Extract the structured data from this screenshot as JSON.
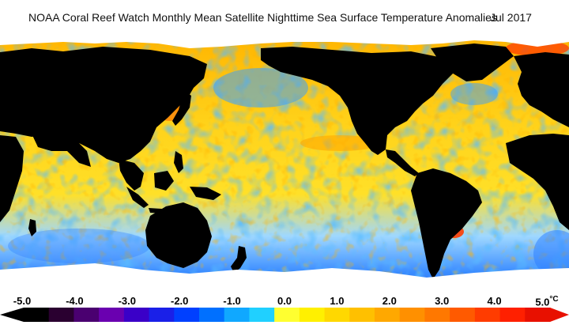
{
  "header": {
    "title": "NOAA Coral Reef Watch Monthly Mean Satellite Nighttime Sea Surface Temperature Anomalies",
    "date": "Jul 2017"
  },
  "legend": {
    "tick_labels": [
      "-5.0",
      "-4.0",
      "-3.0",
      "-2.0",
      "-1.0",
      "0.0",
      "1.0",
      "2.0",
      "3.0",
      "4.0",
      "5.0"
    ],
    "unit": "°C",
    "colors": [
      "#000000",
      "#2a0030",
      "#4a0070",
      "#6a00b0",
      "#3a00c8",
      "#1a20e8",
      "#0040ff",
      "#0070ff",
      "#10a8ff",
      "#20d0ff",
      "#ffff30",
      "#fff000",
      "#ffd800",
      "#ffc000",
      "#ffa800",
      "#ff9000",
      "#ff7800",
      "#ff5a00",
      "#ff3c00",
      "#ff2000",
      "#e81000"
    ]
  },
  "map": {
    "land_color": "#000000",
    "ice_color": "#ffffff",
    "ocean_base_color": "#ffcc10"
  }
}
